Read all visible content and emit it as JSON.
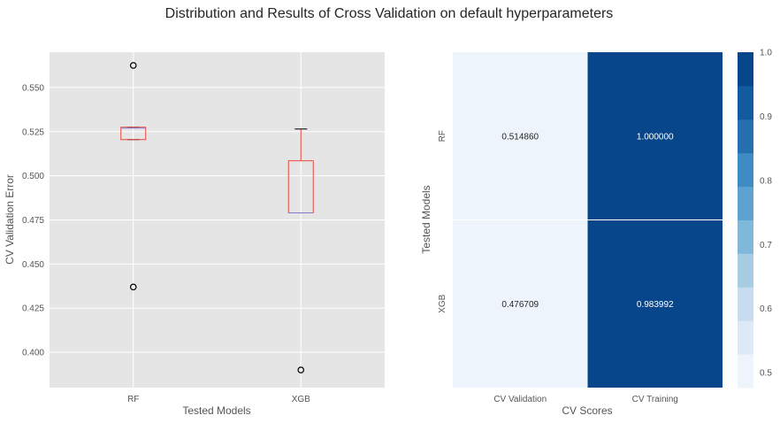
{
  "figure_title": "Distribution and Results of Cross Validation on default hyperparameters",
  "chart_data": [
    {
      "type": "box",
      "title": "",
      "xlabel": "Tested Models",
      "ylabel": "CV Validation Error",
      "categories": [
        "RF",
        "XGB"
      ],
      "ylim": [
        0.38,
        0.57
      ],
      "yticks": [
        "0.400",
        "0.425",
        "0.450",
        "0.475",
        "0.500",
        "0.525",
        "0.550"
      ],
      "boxes": [
        {
          "name": "RF",
          "q1": 0.5205,
          "median": 0.527,
          "q3": 0.5275,
          "whisker_low": 0.5205,
          "whisker_high": 0.5275,
          "fliers": [
            0.5625,
            0.437
          ]
        },
        {
          "name": "XGB",
          "q1": 0.479,
          "median": 0.479,
          "q3": 0.5085,
          "whisker_low": 0.479,
          "whisker_high": 0.5265,
          "fliers": [
            0.39
          ]
        }
      ],
      "colors": {
        "box": "#e8463a",
        "median": "#8b7bd0",
        "cap": "#000000",
        "background": "#e5e5e5",
        "grid": "#ffffff"
      }
    },
    {
      "type": "heatmap",
      "xlabel": "CV Scores",
      "ylabel": "Tested Models",
      "x_categories": [
        "CV Validation",
        "CV Training"
      ],
      "y_categories": [
        "RF",
        "XGB"
      ],
      "values": [
        [
          0.51486,
          1.0
        ],
        [
          0.476709,
          0.983992
        ]
      ],
      "annotations": [
        [
          "0.514860",
          "1.000000"
        ],
        [
          "0.476709",
          "0.983992"
        ]
      ],
      "colormap": "Blues",
      "colorbar_range": [
        0.4767,
        1.0
      ],
      "colorbar_ticks": [
        "0.5",
        "0.6",
        "0.7",
        "0.8",
        "0.9",
        "1.0"
      ],
      "colorbar_tick_values": [
        0.5,
        0.6,
        0.7,
        0.8,
        0.9,
        1.0
      ],
      "colorbar_bands": [
        "#eef4fb",
        "#dde9f6",
        "#c8dcef",
        "#a6cde3",
        "#80b8da",
        "#5da2d1",
        "#3f8bc3",
        "#2770b0",
        "#125b9f",
        "#08468b"
      ]
    }
  ]
}
